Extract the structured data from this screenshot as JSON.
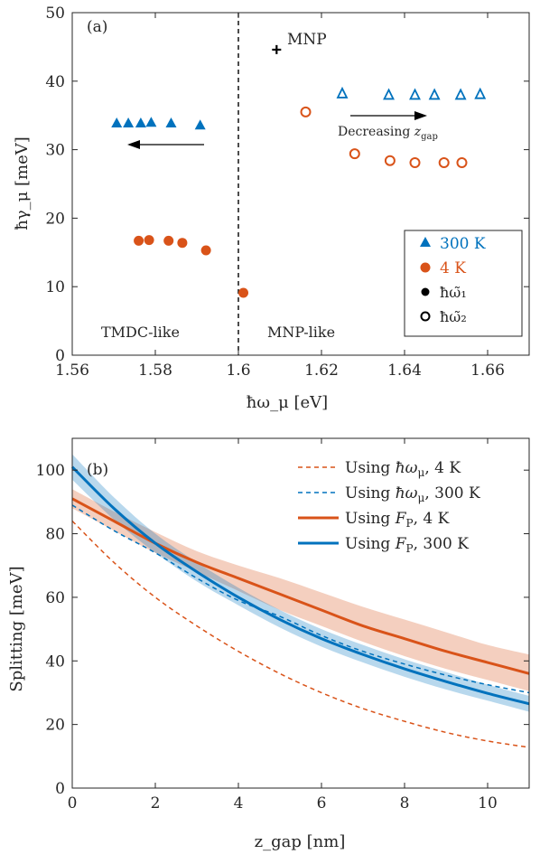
{
  "chart_data": [
    {
      "type": "scatter",
      "panel_label": "(a)",
      "xlabel": "ħω_μ [eV]",
      "ylabel": "ħγ_μ [meV]",
      "xlim": [
        1.56,
        1.67
      ],
      "ylim": [
        0,
        50
      ],
      "xticks": [
        1.56,
        1.58,
        1.6,
        1.62,
        1.64,
        1.66
      ],
      "xtick_labels": [
        "1.56",
        "1.58",
        "1.6",
        "1.62",
        "1.64",
        "1.66"
      ],
      "yticks": [
        0,
        10,
        20,
        30,
        40,
        50
      ],
      "ytick_labels": [
        "0",
        "10",
        "20",
        "30",
        "40",
        "50"
      ],
      "colors": {
        "300K": "#0072BD",
        "4K": "#D95319",
        "axis": "#262626"
      },
      "vline_x": 1.6,
      "series": [
        {
          "name": "300 K",
          "mode": "ħω̃₁",
          "marker": "filled-triangle",
          "color": "#0072BD",
          "x": [
            1.5707,
            1.5735,
            1.5765,
            1.579,
            1.5838,
            1.5908
          ],
          "y": [
            33.9,
            33.9,
            33.9,
            34.0,
            33.9,
            33.6
          ]
        },
        {
          "name": "300 K",
          "mode": "ħω̃₂",
          "marker": "open-triangle",
          "color": "#0072BD",
          "x": [
            1.625,
            1.6362,
            1.6425,
            1.6472,
            1.6535,
            1.6582
          ],
          "y": [
            38.2,
            38.0,
            38.0,
            38.0,
            38.0,
            38.1
          ]
        },
        {
          "name": "4 K",
          "mode": "ħω̃₁",
          "marker": "filled-circle",
          "color": "#D95319",
          "x": [
            1.576,
            1.5785,
            1.5832,
            1.5865,
            1.5922,
            1.6012
          ],
          "y": [
            16.7,
            16.8,
            16.7,
            16.4,
            15.3,
            9.1
          ]
        },
        {
          "name": "4 K",
          "mode": "ħω̃₂",
          "marker": "open-circle",
          "color": "#D95319",
          "x": [
            1.6162,
            1.628,
            1.6365,
            1.6425,
            1.6495,
            1.6538
          ],
          "y": [
            35.5,
            29.4,
            28.4,
            28.1,
            28.1,
            28.1
          ]
        },
        {
          "name": "MNP",
          "marker": "plus",
          "color": "#000000",
          "x": [
            1.6092
          ],
          "y": [
            44.6
          ]
        }
      ],
      "annotations": {
        "mnp": "MNP",
        "decreasing": "Decreasing z_gap",
        "left_region": "TMDC-like",
        "right_region": "MNP-like"
      },
      "legend": {
        "placement": "bottom-right",
        "entries": [
          {
            "label": "300 K",
            "marker": "filled-triangle",
            "color": "#0072BD"
          },
          {
            "label": "4 K",
            "marker": "filled-circle",
            "color": "#D95319"
          },
          {
            "label": "ħω̃₁",
            "marker": "filled-circle",
            "color": "#000000"
          },
          {
            "label": "ħω̃₂",
            "marker": "open-circle",
            "color": "#000000"
          }
        ]
      }
    },
    {
      "type": "line",
      "panel_label": "(b)",
      "xlabel": "z_gap [nm]",
      "ylabel": "Splitting [meV]",
      "xlim": [
        0,
        11
      ],
      "ylim": [
        0,
        110
      ],
      "xticks": [
        0,
        2,
        4,
        6,
        8,
        10
      ],
      "xtick_labels": [
        "0",
        "2",
        "4",
        "6",
        "8",
        "10"
      ],
      "yticks": [
        0,
        20,
        40,
        60,
        80,
        100
      ],
      "ytick_labels": [
        "0",
        "20",
        "40",
        "60",
        "80",
        "100"
      ],
      "x": [
        0,
        1,
        2,
        3,
        4,
        5,
        6,
        7,
        8,
        9,
        10,
        11
      ],
      "series": [
        {
          "name": "Using ħω_μ, 4 K",
          "style": "dashed",
          "color": "#D95319",
          "values": [
            84,
            71,
            60,
            51,
            43,
            36,
            30,
            25,
            21,
            17.5,
            14.8,
            12.8
          ]
        },
        {
          "name": "Using ħω_μ, 300 K",
          "style": "dashed",
          "color": "#0072BD",
          "values": [
            89,
            81,
            74,
            66,
            59,
            54,
            48,
            43,
            39,
            35.5,
            32.5,
            30
          ]
        },
        {
          "name": "Using F_P, 4 K",
          "style": "solid",
          "color": "#D95319",
          "values": [
            91,
            84,
            77,
            71,
            66,
            61,
            56,
            51,
            47,
            43,
            39.5,
            36
          ],
          "band_low": [
            88,
            81,
            74,
            68,
            62,
            56,
            51,
            46,
            41.5,
            37.5,
            34,
            30.5
          ],
          "band_high": [
            94,
            87,
            80.5,
            74.5,
            70,
            66,
            61.5,
            57,
            53,
            49,
            45,
            42
          ]
        },
        {
          "name": "Using F_P, 300 K",
          "style": "solid",
          "color": "#0072BD",
          "values": [
            101,
            88,
            77,
            68,
            60,
            53,
            47,
            42,
            37.5,
            33.5,
            29.8,
            26.5
          ],
          "band_low": [
            97,
            84.5,
            74,
            65,
            57.5,
            50.5,
            44.5,
            39.5,
            35,
            31,
            27.5,
            24
          ],
          "band_high": [
            105,
            91.5,
            80,
            71,
            63,
            56,
            50,
            45,
            40.5,
            36.5,
            32.5,
            29
          ]
        }
      ],
      "legend": {
        "placement": "top-right",
        "entries": [
          {
            "pre": "Using ",
            "math": "ħω",
            "sub": "μ",
            "post": ", 4 K",
            "style": "dashed",
            "color": "#D95319"
          },
          {
            "pre": "Using ",
            "math": "ħω",
            "sub": "μ",
            "post": ", 300 K",
            "style": "dashed",
            "color": "#0072BD"
          },
          {
            "pre": "Using ",
            "math": "F",
            "sub": "P",
            "post": ", 4 K",
            "style": "solid",
            "color": "#D95319"
          },
          {
            "pre": "Using ",
            "math": "F",
            "sub": "P",
            "post": ", 300 K",
            "style": "solid",
            "color": "#0072BD"
          }
        ]
      }
    }
  ]
}
